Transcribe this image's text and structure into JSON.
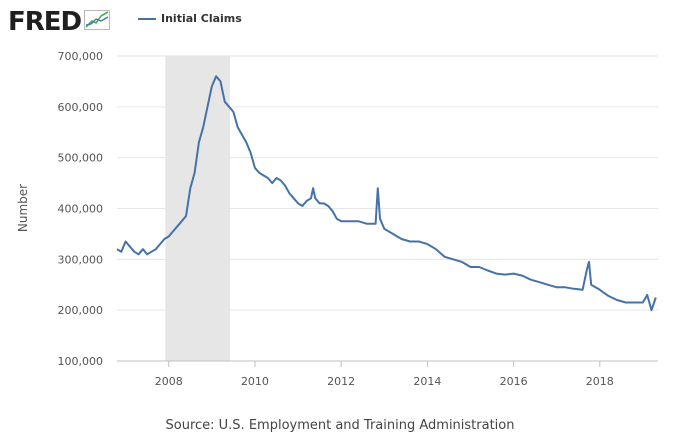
{
  "header": {
    "logo_text": "FRED",
    "logo_icon": "trend-line-icon",
    "legend_label": "Initial Claims"
  },
  "footer": {
    "source": "Source: U.S. Employment and Training Administration"
  },
  "colors": {
    "series": "#4572a7",
    "recession": "#e6e6e6",
    "grid": "#e6e6e6"
  },
  "chart_data": {
    "type": "line",
    "title": "",
    "xlabel": "",
    "ylabel": "Number",
    "xlim": [
      2006.8,
      2019.35
    ],
    "ylim": [
      100000,
      700000
    ],
    "y_ticks": [
      100000,
      200000,
      300000,
      400000,
      500000,
      600000,
      700000
    ],
    "y_tick_labels": [
      "100,000",
      "200,000",
      "300,000",
      "400,000",
      "500,000",
      "600,000",
      "700,000"
    ],
    "x_ticks": [
      2008,
      2010,
      2012,
      2014,
      2016,
      2018
    ],
    "x_tick_labels": [
      "2008",
      "2010",
      "2012",
      "2014",
      "2016",
      "2018"
    ],
    "grid": true,
    "legend": "top-left",
    "recession_shading": [
      [
        2007.92,
        2009.42
      ]
    ],
    "series": [
      {
        "name": "Initial Claims",
        "x": [
          2006.8,
          2006.9,
          2007.0,
          2007.1,
          2007.2,
          2007.3,
          2007.4,
          2007.5,
          2007.6,
          2007.7,
          2007.8,
          2007.9,
          2008.0,
          2008.1,
          2008.2,
          2008.3,
          2008.4,
          2008.5,
          2008.6,
          2008.7,
          2008.8,
          2008.9,
          2009.0,
          2009.1,
          2009.2,
          2009.25,
          2009.3,
          2009.4,
          2009.5,
          2009.6,
          2009.7,
          2009.8,
          2009.9,
          2010.0,
          2010.1,
          2010.2,
          2010.3,
          2010.4,
          2010.5,
          2010.6,
          2010.7,
          2010.8,
          2010.9,
          2011.0,
          2011.1,
          2011.2,
          2011.3,
          2011.35,
          2011.4,
          2011.5,
          2011.6,
          2011.7,
          2011.8,
          2011.9,
          2012.0,
          2012.2,
          2012.4,
          2012.6,
          2012.8,
          2012.85,
          2012.9,
          2013.0,
          2013.2,
          2013.4,
          2013.6,
          2013.8,
          2014.0,
          2014.2,
          2014.4,
          2014.6,
          2014.8,
          2015.0,
          2015.2,
          2015.4,
          2015.6,
          2015.8,
          2016.0,
          2016.2,
          2016.4,
          2016.6,
          2016.8,
          2017.0,
          2017.2,
          2017.4,
          2017.6,
          2017.7,
          2017.75,
          2017.8,
          2017.9,
          2018.0,
          2018.2,
          2018.4,
          2018.6,
          2018.8,
          2019.0,
          2019.1,
          2019.2,
          2019.3
        ],
        "values": [
          320000,
          315000,
          335000,
          325000,
          315000,
          310000,
          320000,
          310000,
          315000,
          320000,
          330000,
          340000,
          345000,
          355000,
          365000,
          375000,
          385000,
          440000,
          470000,
          530000,
          560000,
          600000,
          640000,
          660000,
          650000,
          630000,
          610000,
          600000,
          590000,
          560000,
          545000,
          530000,
          510000,
          480000,
          470000,
          465000,
          460000,
          450000,
          460000,
          455000,
          445000,
          430000,
          420000,
          410000,
          405000,
          415000,
          420000,
          440000,
          420000,
          410000,
          410000,
          405000,
          395000,
          380000,
          375000,
          375000,
          375000,
          370000,
          370000,
          440000,
          380000,
          360000,
          350000,
          340000,
          335000,
          335000,
          330000,
          320000,
          305000,
          300000,
          295000,
          285000,
          285000,
          278000,
          272000,
          270000,
          272000,
          268000,
          260000,
          255000,
          250000,
          245000,
          245000,
          242000,
          240000,
          280000,
          295000,
          250000,
          245000,
          240000,
          228000,
          220000,
          215000,
          215000,
          215000,
          230000,
          200000,
          225000
        ]
      }
    ]
  }
}
